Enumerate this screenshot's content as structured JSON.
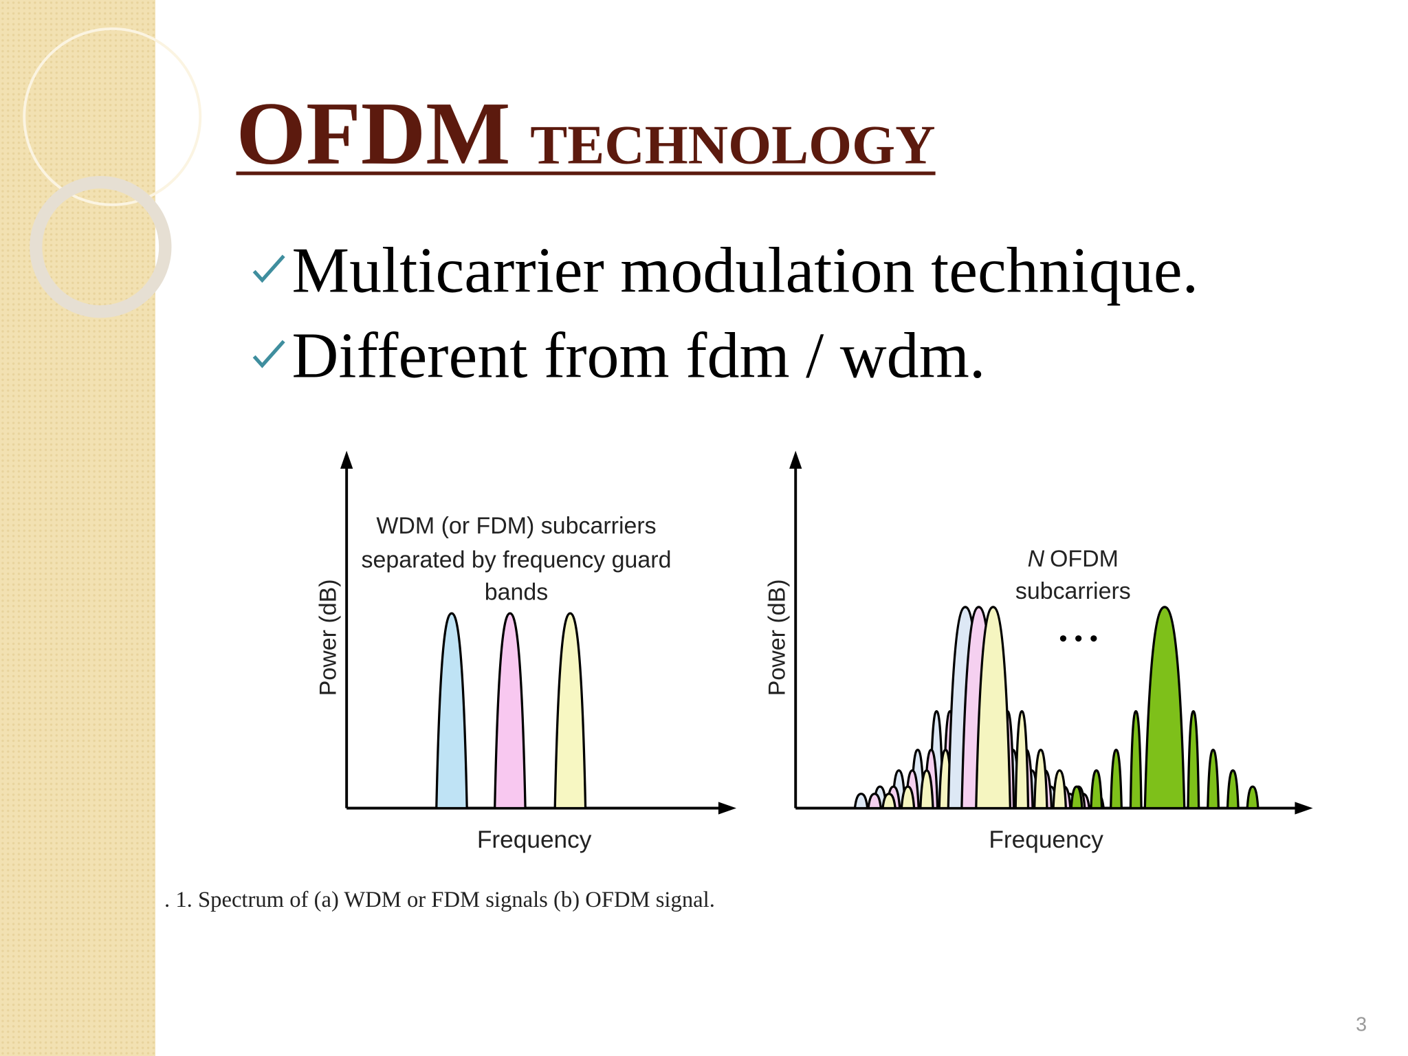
{
  "title": {
    "main": "OFDM",
    "rest": "TECHNOLOGY"
  },
  "bullets": [
    "Multicarrier modulation technique.",
    "Different from fdm / wdm."
  ],
  "figure": {
    "panels": [
      {
        "y_label": "Power (dB)",
        "x_label": "Frequency",
        "annotation": [
          "WDM (or FDM) subcarriers",
          "separated by frequency guard",
          "bands"
        ]
      },
      {
        "y_label": "Power (dB)",
        "x_label": "Frequency",
        "annotation_prefix": "N",
        "annotation": [
          "OFDM",
          "subcarriers"
        ]
      }
    ],
    "caption": ". 1.  Spectrum of (a) WDM or FDM signals (b) OFDM signal."
  },
  "page_number": "3"
}
